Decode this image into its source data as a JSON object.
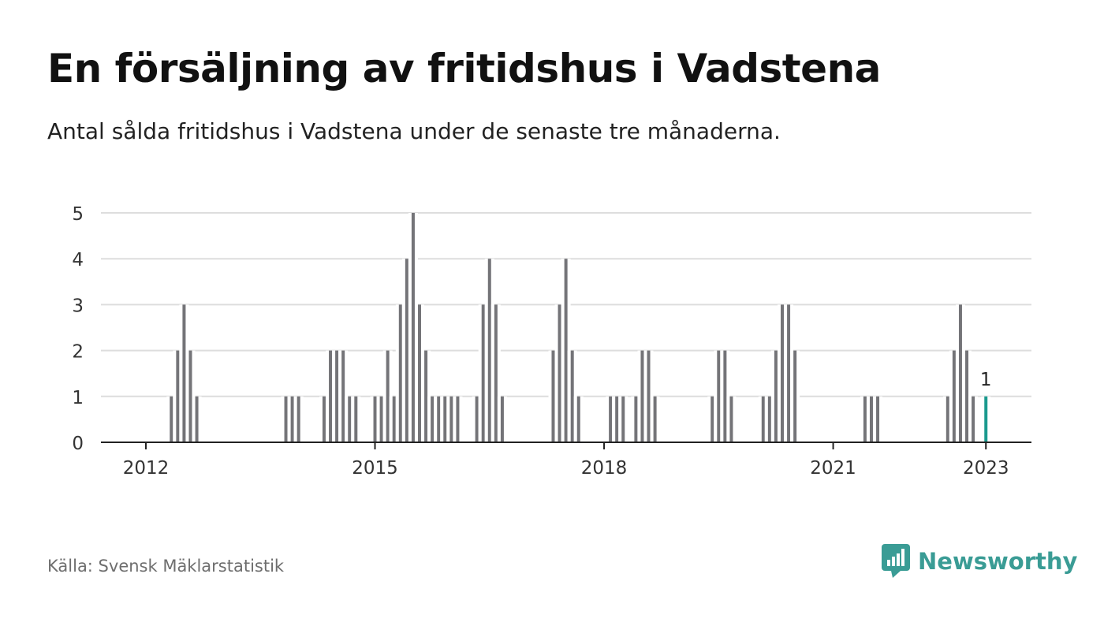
{
  "title": "En försäljning av fritidshus i Vadstena",
  "subtitle": "Antal sålda fritidshus i Vadstena under de senaste tre månaderna.",
  "source": "Källa: Svensk Mäklarstatistik",
  "brand": {
    "name": "Newsworthy",
    "icon": "newsworthy-logo-icon"
  },
  "colors": {
    "bar": "#747478",
    "highlight": "#1b9a8e",
    "grid": "#dddddd",
    "axis": "#222222",
    "brand": "#3a9c95"
  },
  "chart_data": {
    "type": "bar",
    "x": [
      "2012-01",
      "2012-02",
      "2012-03",
      "2012-04",
      "2012-05",
      "2012-06",
      "2012-07",
      "2012-08",
      "2012-09",
      "2012-10",
      "2012-11",
      "2012-12",
      "2013-01",
      "2013-02",
      "2013-03",
      "2013-04",
      "2013-05",
      "2013-06",
      "2013-07",
      "2013-08",
      "2013-09",
      "2013-10",
      "2013-11",
      "2013-12",
      "2014-01",
      "2014-02",
      "2014-03",
      "2014-04",
      "2014-05",
      "2014-06",
      "2014-07",
      "2014-08",
      "2014-09",
      "2014-10",
      "2014-11",
      "2014-12",
      "2015-01",
      "2015-02",
      "2015-03",
      "2015-04",
      "2015-05",
      "2015-06",
      "2015-07",
      "2015-08",
      "2015-09",
      "2015-10",
      "2015-11",
      "2015-12",
      "2016-01",
      "2016-02",
      "2016-03",
      "2016-04",
      "2016-05",
      "2016-06",
      "2016-07",
      "2016-08",
      "2016-09",
      "2016-10",
      "2016-11",
      "2016-12",
      "2017-01",
      "2017-02",
      "2017-03",
      "2017-04",
      "2017-05",
      "2017-06",
      "2017-07",
      "2017-08",
      "2017-09",
      "2017-10",
      "2017-11",
      "2017-12",
      "2018-01",
      "2018-02",
      "2018-03",
      "2018-04",
      "2018-05",
      "2018-06",
      "2018-07",
      "2018-08",
      "2018-09",
      "2018-10",
      "2018-11",
      "2018-12",
      "2019-01",
      "2019-02",
      "2019-03",
      "2019-04",
      "2019-05",
      "2019-06",
      "2019-07",
      "2019-08",
      "2019-09",
      "2019-10",
      "2019-11",
      "2019-12",
      "2020-01",
      "2020-02",
      "2020-03",
      "2020-04",
      "2020-05",
      "2020-06",
      "2020-07",
      "2020-08",
      "2020-09",
      "2020-10",
      "2020-11",
      "2020-12",
      "2021-01",
      "2021-02",
      "2021-03",
      "2021-04",
      "2021-05",
      "2021-06",
      "2021-07",
      "2021-08",
      "2021-09",
      "2021-10",
      "2021-11",
      "2021-12",
      "2022-01",
      "2022-02",
      "2022-03",
      "2022-04",
      "2022-05",
      "2022-06",
      "2022-07",
      "2022-08",
      "2022-09",
      "2022-10",
      "2022-11",
      "2022-12",
      "2023-01"
    ],
    "values": [
      0,
      0,
      0,
      0,
      1,
      2,
      3,
      2,
      1,
      0,
      0,
      0,
      0,
      0,
      0,
      0,
      0,
      0,
      0,
      0,
      0,
      0,
      1,
      1,
      1,
      0,
      0,
      0,
      1,
      2,
      2,
      2,
      1,
      1,
      0,
      0,
      1,
      1,
      2,
      1,
      3,
      4,
      5,
      3,
      2,
      1,
      1,
      1,
      1,
      1,
      0,
      0,
      1,
      3,
      4,
      3,
      1,
      0,
      0,
      0,
      0,
      0,
      0,
      0,
      2,
      3,
      4,
      2,
      1,
      0,
      0,
      0,
      0,
      1,
      1,
      1,
      0,
      1,
      2,
      2,
      1,
      0,
      0,
      0,
      0,
      0,
      0,
      0,
      0,
      1,
      2,
      2,
      1,
      0,
      0,
      0,
      0,
      1,
      1,
      2,
      3,
      3,
      2,
      0,
      0,
      0,
      0,
      0,
      0,
      0,
      0,
      0,
      0,
      1,
      1,
      1,
      0,
      0,
      0,
      0,
      0,
      0,
      0,
      0,
      0,
      0,
      1,
      2,
      3,
      2,
      1,
      0,
      1
    ],
    "highlight": {
      "x": "2023-01",
      "label": "1"
    },
    "xticks": [
      {
        "label": "2012",
        "x": "2012-01"
      },
      {
        "label": "2015",
        "x": "2015-01"
      },
      {
        "label": "2018",
        "x": "2018-01"
      },
      {
        "label": "2021",
        "x": "2021-01"
      },
      {
        "label": "2023",
        "x": "2023-01"
      }
    ],
    "yticks": [
      "0",
      "1",
      "2",
      "3",
      "4",
      "5"
    ],
    "ylim": [
      0,
      5
    ],
    "grid": true
  }
}
